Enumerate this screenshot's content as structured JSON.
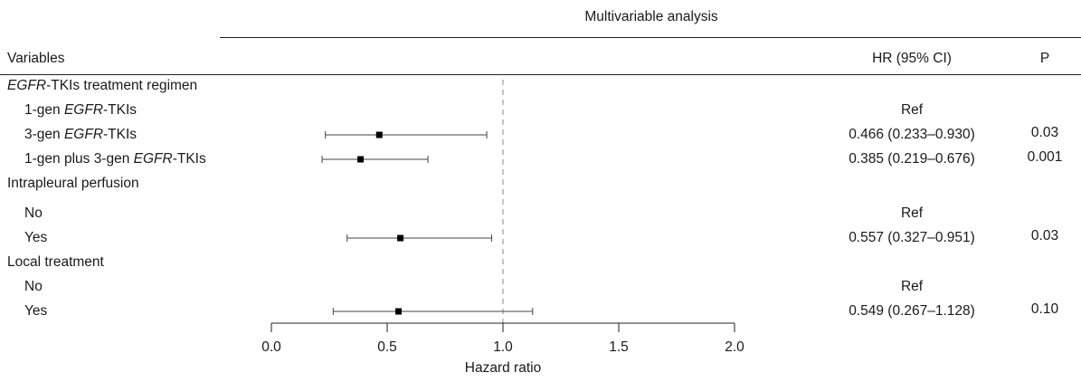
{
  "header": {
    "group_title": "Multivariable analysis",
    "col_variables": "Variables",
    "col_hr": "HR (95% CI)",
    "col_p": "P"
  },
  "rows": [
    {
      "label_pre": "",
      "label_em": "EGFR",
      "label_post": "-TKIs treatment regimen",
      "level": 0,
      "hr_text": "",
      "p": ""
    },
    {
      "label_pre": "1-gen ",
      "label_em": "EGFR",
      "label_post": "-TKIs",
      "level": 1,
      "hr_text": "Ref",
      "p": ""
    },
    {
      "label_pre": "3-gen ",
      "label_em": "EGFR",
      "label_post": "-TKIs",
      "level": 1,
      "hr_text": "0.466 (0.233–0.930)",
      "p": "0.03"
    },
    {
      "label_pre": "1-gen plus 3-gen ",
      "label_em": "EGFR",
      "label_post": "-TKIs",
      "level": 1,
      "hr_text": "0.385 (0.219–0.676)",
      "p": "0.001"
    },
    {
      "label_pre": "Intrapleural perfusion",
      "label_em": "",
      "label_post": "",
      "level": 0,
      "hr_text": "",
      "p": ""
    },
    {
      "label_pre": "No",
      "label_em": "",
      "label_post": "",
      "level": 1,
      "hr_text": "Ref",
      "p": ""
    },
    {
      "label_pre": "Yes",
      "label_em": "",
      "label_post": "",
      "level": 1,
      "hr_text": "0.557 (0.327–0.951)",
      "p": "0.03"
    },
    {
      "label_pre": "Local treatment",
      "label_em": "",
      "label_post": "",
      "level": 0,
      "hr_text": "",
      "p": ""
    },
    {
      "label_pre": "No",
      "label_em": "",
      "label_post": "",
      "level": 1,
      "hr_text": "Ref",
      "p": ""
    },
    {
      "label_pre": "Yes",
      "label_em": "",
      "label_post": "",
      "level": 1,
      "hr_text": "0.549 (0.267–1.128)",
      "p": "0.10"
    }
  ],
  "chart_data": {
    "type": "forest",
    "xlabel": "Hazard ratio",
    "xlim": [
      0,
      2
    ],
    "xticks": [
      "0.0",
      "0.5",
      "1.0",
      "1.5",
      "2.0"
    ],
    "reference_line": 1.0,
    "points": [
      {
        "row": 2,
        "hr": 0.466,
        "lower": 0.233,
        "upper": 0.93
      },
      {
        "row": 3,
        "hr": 0.385,
        "lower": 0.219,
        "upper": 0.676
      },
      {
        "row": 6,
        "hr": 0.557,
        "lower": 0.327,
        "upper": 0.951
      },
      {
        "row": 9,
        "hr": 0.549,
        "lower": 0.267,
        "upper": 1.128
      }
    ]
  }
}
